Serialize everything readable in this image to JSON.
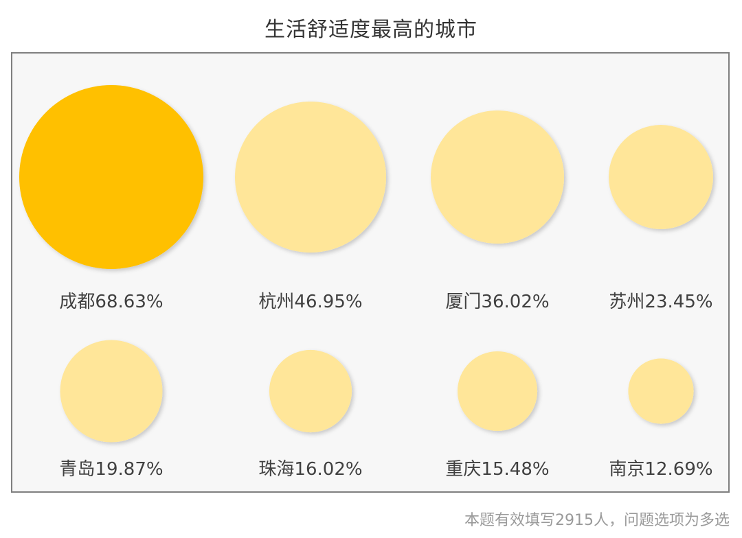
{
  "title": "生活舒适度最高的城市",
  "footer": "本题有效填写2915人，问题选项为多选",
  "colors": {
    "highlight": "#FFC000",
    "normal": "#FFE699",
    "label": "#404040"
  },
  "chart_data": {
    "type": "bubble",
    "title": "生活舒适度最高的城市",
    "unit": "%",
    "categories": [
      "成都",
      "杭州",
      "厦门",
      "苏州",
      "青岛",
      "珠海",
      "重庆",
      "南京"
    ],
    "values": [
      68.63,
      46.95,
      36.02,
      23.45,
      19.87,
      16.02,
      15.48,
      12.69
    ],
    "labels": [
      "成都68.63%",
      "杭州46.95%",
      "厦门36.02%",
      "苏州23.45%",
      "青岛19.87%",
      "珠海16.02%",
      "重庆15.48%",
      "南京12.69%"
    ],
    "highlight_index": 0,
    "grid": false,
    "legend": "none"
  }
}
